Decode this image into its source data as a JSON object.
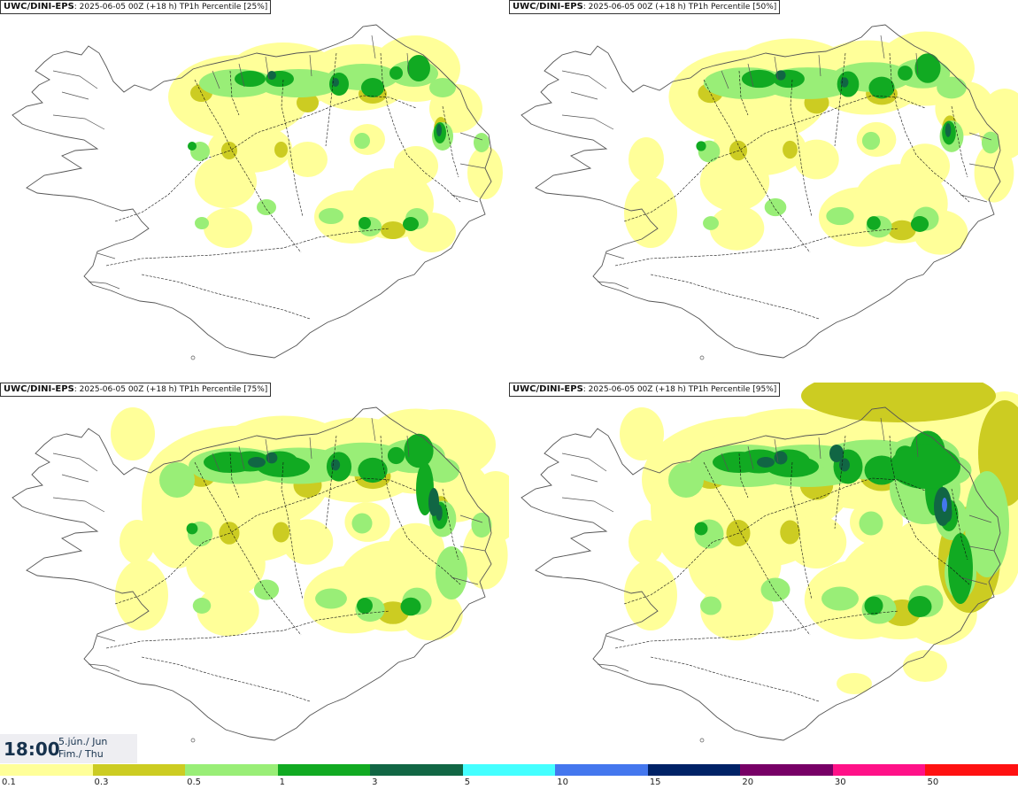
{
  "panels": [
    {
      "model": "UWC/DINI-EPS",
      "run": ": 2025-06-05 00Z (+18 h) ",
      "field": "TP1h Percentile [25%]",
      "level": 0
    },
    {
      "model": "UWC/DINI-EPS",
      "run": ": 2025-06-05 00Z (+18 h) ",
      "field": "TP1h Percentile [50%]",
      "level": 1
    },
    {
      "model": "UWC/DINI-EPS",
      "run": ": 2025-06-05 00Z (+18 h) ",
      "field": "TP1h Percentile [75%]",
      "level": 2
    },
    {
      "model": "UWC/DINI-EPS",
      "run": ": 2025-06-05 00Z (+18 h) ",
      "field": "TP1h Percentile [95%]",
      "level": 3
    }
  ],
  "valid_time": {
    "hour": "18:00",
    "date_line1": "5.jún./ Jun",
    "date_line2": "Fim./ Thu"
  },
  "legend": {
    "ticks": [
      "0.1",
      "0.3",
      "0.5",
      "1",
      "3",
      "5",
      "10",
      "15",
      "20",
      "30",
      "50"
    ],
    "colors": [
      "#ffff99",
      "#cccc22",
      "#99ee77",
      "#11aa22",
      "#116644",
      "#44ffff",
      "#4477ee",
      "#002266",
      "#770066",
      "#ff1188",
      "#ff1111"
    ]
  },
  "map_colors": {
    "coast": "#555555",
    "roads": "#111111",
    "light_yellow": "#ffff99",
    "olive": "#cccc22",
    "light_green": "#99ee77",
    "green": "#11aa22",
    "dark_green": "#116644",
    "blue": "#4477ee"
  }
}
